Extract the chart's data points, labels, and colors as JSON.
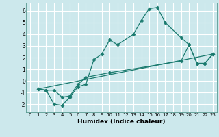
{
  "xlabel": "Humidex (Indice chaleur)",
  "ylabel": "",
  "bg_color": "#cce8ec",
  "grid_color": "#ffffff",
  "line_color": "#1a7a6e",
  "xlim": [
    -0.5,
    23.5
  ],
  "ylim": [
    -2.7,
    6.7
  ],
  "yticks": [
    -2,
    -1,
    0,
    1,
    2,
    3,
    4,
    5,
    6
  ],
  "xticks": [
    0,
    1,
    2,
    3,
    4,
    5,
    6,
    7,
    8,
    9,
    10,
    11,
    12,
    13,
    14,
    15,
    16,
    17,
    18,
    19,
    20,
    21,
    22,
    23
  ],
  "line1_x": [
    1,
    2,
    3,
    4,
    5,
    6,
    7,
    8,
    9,
    10,
    11,
    13,
    14,
    15,
    16,
    17,
    19,
    20,
    21,
    22,
    23
  ],
  "line1_y": [
    -0.7,
    -0.8,
    -2.0,
    -2.1,
    -1.4,
    -0.5,
    -0.3,
    1.8,
    2.3,
    3.5,
    3.1,
    4.0,
    5.2,
    6.2,
    6.3,
    5.0,
    3.7,
    3.1,
    1.5,
    1.5,
    2.3
  ],
  "line2_x": [
    1,
    2,
    3,
    4,
    5,
    6,
    7,
    10,
    19,
    20,
    21,
    22,
    23
  ],
  "line2_y": [
    -0.7,
    -0.8,
    -0.8,
    -1.4,
    -1.3,
    -0.3,
    0.3,
    0.7,
    1.7,
    3.1,
    1.5,
    1.5,
    2.3
  ],
  "line3_x": [
    1,
    23
  ],
  "line3_y": [
    -0.7,
    2.3
  ]
}
